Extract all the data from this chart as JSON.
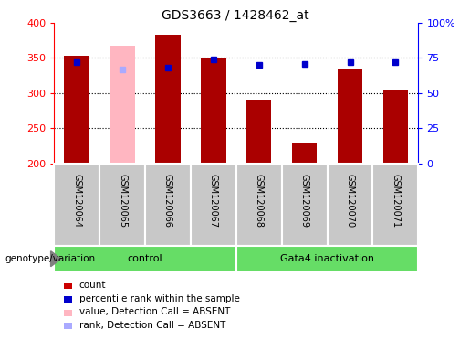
{
  "title": "GDS3663 / 1428462_at",
  "samples": [
    "GSM120064",
    "GSM120065",
    "GSM120066",
    "GSM120067",
    "GSM120068",
    "GSM120069",
    "GSM120070",
    "GSM120071"
  ],
  "count_values": [
    353,
    null,
    383,
    350,
    290,
    229,
    335,
    305
  ],
  "absent_value": [
    null,
    368,
    null,
    null,
    null,
    null,
    null,
    null
  ],
  "percentile_rank": [
    72,
    null,
    68,
    74,
    70,
    71,
    72,
    72
  ],
  "absent_rank": [
    null,
    67,
    null,
    null,
    null,
    null,
    null,
    null
  ],
  "ylim_left": [
    200,
    400
  ],
  "ylim_right": [
    0,
    100
  ],
  "yticks_left": [
    200,
    250,
    300,
    350,
    400
  ],
  "yticks_right": [
    0,
    25,
    50,
    75,
    100
  ],
  "ytick_right_labels": [
    "0",
    "25",
    "50",
    "75",
    "100%"
  ],
  "groups": [
    {
      "label": "control",
      "start": 0,
      "end": 3
    },
    {
      "label": "Gata4 inactivation",
      "start": 4,
      "end": 7
    }
  ],
  "bar_color_present": "#AA0000",
  "bar_color_absent": "#FFB6C1",
  "dot_color_present": "#0000CC",
  "dot_color_absent": "#AAAAFF",
  "annotation_text": "genotype/variation",
  "legend_items": [
    {
      "label": "count",
      "color": "#CC0000"
    },
    {
      "label": "percentile rank within the sample",
      "color": "#0000CC"
    },
    {
      "label": "value, Detection Call = ABSENT",
      "color": "#FFB6C1"
    },
    {
      "label": "rank, Detection Call = ABSENT",
      "color": "#AAAAFF"
    }
  ],
  "grid_lines": [
    250,
    300,
    350
  ],
  "label_bg": "#C8C8C8",
  "group_bg": "#66DD66"
}
